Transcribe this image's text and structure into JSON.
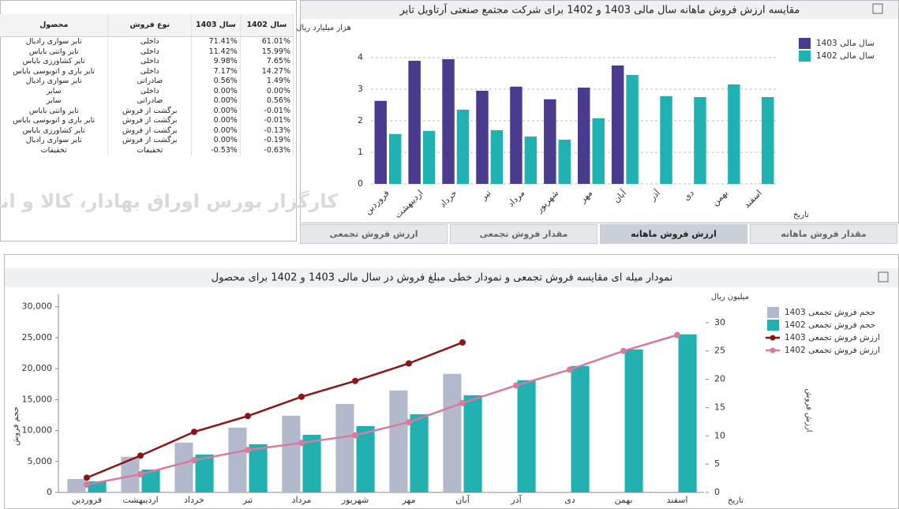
{
  "table": {
    "header": [
      "محصول",
      "نوع فروش",
      "سال 1403",
      "سال 1402"
    ],
    "rows": [
      [
        "تایر سواری رادیال",
        "داخلی",
        "71.41%",
        "61.01%"
      ],
      [
        "تایر وانتی بایاس",
        "داخلی",
        "11.42%",
        "15.99%"
      ],
      [
        "تایر کشاورزی بایاس",
        "داخلی",
        "9.98%",
        "7.65%"
      ],
      [
        "تایر باری و اتوبوسی بایاس",
        "داخلی",
        "7.17%",
        "14.27%"
      ],
      [
        "تایر سواری رادیال",
        "صادراتی",
        "0.56%",
        "1.49%"
      ],
      [
        "سایر",
        "داخلی",
        "0.00%",
        "0.00%"
      ],
      [
        "سایر",
        "صادراتی",
        "0.00%",
        "0.56%"
      ],
      [
        "تایر وانتی بایاس",
        "برگشت از فروش",
        "0.00%",
        "-0.01%"
      ],
      [
        "تایر باری و اتوبوسی بایاس",
        "برگشت از فروش",
        "0.00%",
        "-0.01%"
      ],
      [
        "تایر کشاورزی بایاس",
        "برگشت از فروش",
        "0.00%",
        "-0.13%"
      ],
      [
        "تایر سواری رادیال",
        "برگشت از فروش",
        "0.00%",
        "-0.19%"
      ],
      [
        "تخفیفات",
        "تخفیفات",
        "-0.53%",
        "-0.63%"
      ]
    ],
    "watermark": "کارگزار بورس اوراق بهادار، کالا و انرژی"
  },
  "tabs": [
    "ارزش فروش تجمعی",
    "مقدار فروش تجمعی",
    "ارزش فروش ماهانه",
    "مقدار فروش ماهانه"
  ],
  "active_tab": 2,
  "chart_data": [
    {
      "type": "bar",
      "title": "مقایسه ارزش فروش ماهانه سال مالی 1403 و 1402 برای شرکت مجتمع صنعتی آرتاویل تایر",
      "ylabel": "هزار میلیارد ریال",
      "xlabel": "تاریخ",
      "categories": [
        "فروردین",
        "اردیبهشت",
        "خرداد",
        "تیر",
        "مرداد",
        "شهریور",
        "مهر",
        "آبان",
        "آذر",
        "دی",
        "بهمن",
        "اسفند"
      ],
      "series": [
        {
          "name": "سال مالی 1403",
          "color": "#4a3b8f",
          "values": [
            2.63,
            3.9,
            3.95,
            2.95,
            3.08,
            2.68,
            3.05,
            3.75,
            null,
            null,
            null,
            null
          ]
        },
        {
          "name": "سال مالی 1402",
          "color": "#20b2b2",
          "values": [
            1.58,
            1.68,
            2.35,
            1.7,
            1.5,
            1.4,
            2.08,
            3.45,
            2.78,
            2.75,
            3.15,
            2.75
          ]
        }
      ],
      "ylim": [
        0,
        4.6
      ],
      "yticks": [
        0,
        1,
        2,
        3,
        4
      ],
      "grid": true,
      "legend": "top-right"
    },
    {
      "type": "combo",
      "title": "نمودار میله ای مقایسه فروش تجمعی و نمودار خطی مبلغ فروش در سال مالی 1403 و 1402 برای محصول",
      "ylabel": "حجم فروش",
      "y2label": "ارزش فروش",
      "y2unit": "میلیون ریال",
      "xlabel": "تاریخ",
      "categories": [
        "فروردین",
        "اردیبهشت",
        "خرداد",
        "تیر",
        "مرداد",
        "شهریور",
        "مهر",
        "آبان",
        "آذر",
        "دی",
        "بهمن",
        "اسفند"
      ],
      "series": [
        {
          "name": "حجم فروش تجمعی 1403",
          "type": "bar",
          "color": "#b3b9cc",
          "values": [
            2170,
            5750,
            8040,
            10470,
            12390,
            14300,
            16470,
            19150,
            null,
            null,
            null,
            null
          ]
        },
        {
          "name": "حجم فروش تجمعی 1402",
          "type": "bar",
          "color": "#22b0b0",
          "values": [
            1790,
            3700,
            6130,
            7790,
            9320,
            10730,
            12640,
            15700,
            18130,
            20430,
            23110,
            25540
          ]
        },
        {
          "name": "ارزش فروش تجمعی 1403",
          "type": "line",
          "axis": "y2",
          "color": "#8b1414",
          "values": [
            2.6,
            6.5,
            10.7,
            13.5,
            16.9,
            19.7,
            22.8,
            26.5,
            null,
            null,
            null,
            null
          ]
        },
        {
          "name": "ارزش فروش تجمعی 1402",
          "type": "line",
          "axis": "y2",
          "color": "#d77a9e",
          "values": [
            1.4,
            3.2,
            5.7,
            7.5,
            8.75,
            10.1,
            12.4,
            15.8,
            18.9,
            21.7,
            25.0,
            27.8
          ]
        }
      ],
      "ylim": [
        0,
        32000
      ],
      "yticks": [
        0,
        {
          "value": 5000,
          "label": "5,000"
        },
        {
          "value": 10000,
          "label": "10,000"
        },
        {
          "value": 15000,
          "label": "15,000"
        },
        {
          "value": 20000,
          "label": "20,000"
        },
        {
          "value": 25000,
          "label": "25,000"
        },
        {
          "value": 30000,
          "label": "30,000"
        }
      ],
      "y2lim": [
        0,
        35
      ],
      "y2ticks": [
        0,
        5,
        10,
        15,
        20,
        25,
        30
      ],
      "grid": false,
      "legend": "top-right"
    }
  ]
}
